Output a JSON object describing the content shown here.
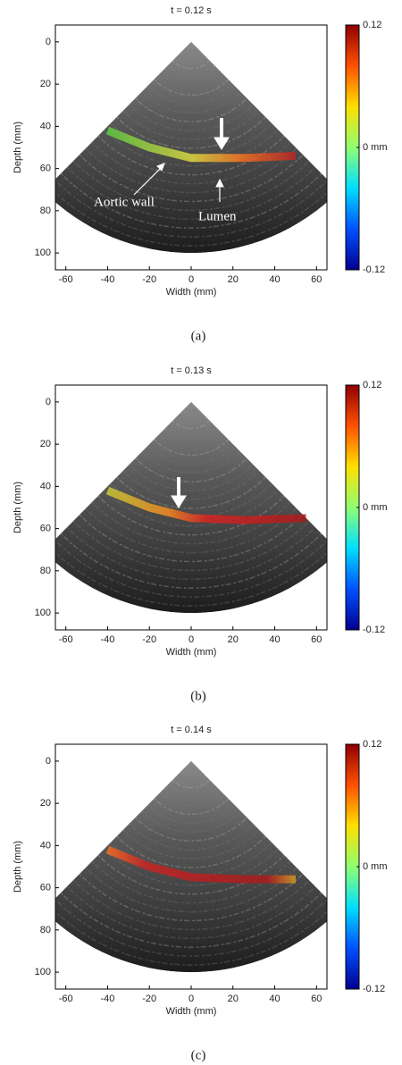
{
  "chart_data": [
    {
      "type": "image",
      "title": "t = 0.12 s",
      "xlabel": "Width (mm)",
      "ylabel": "Depth (mm)",
      "xlim": [
        -65,
        65
      ],
      "ylim": [
        108,
        -8
      ],
      "xticks": [
        -60,
        -40,
        -20,
        0,
        20,
        40,
        60
      ],
      "yticks": [
        0,
        20,
        40,
        60,
        80,
        100
      ],
      "colorbar": {
        "lim": [
          -0.12,
          0.12
        ],
        "ticks": [
          -0.12,
          {
            "value": 0,
            "label": "0 mm"
          },
          0.12
        ],
        "colors": [
          "#00008f",
          "#0050ff",
          "#00dfff",
          "#8fff70",
          "#ffdf00",
          "#ff5000",
          "#8f0000"
        ]
      },
      "annotations": [
        "Aortic wall",
        "Lumen"
      ],
      "caption": "(a)"
    },
    {
      "type": "image",
      "title": "t = 0.13 s",
      "xlabel": "Width (mm)",
      "ylabel": "Depth (mm)",
      "xlim": [
        -65,
        65
      ],
      "ylim": [
        108,
        -8
      ],
      "xticks": [
        -60,
        -40,
        -20,
        0,
        20,
        40,
        60
      ],
      "yticks": [
        0,
        20,
        40,
        60,
        80,
        100
      ],
      "colorbar": {
        "lim": [
          -0.12,
          0.12
        ],
        "ticks": [
          -0.12,
          {
            "value": 0,
            "label": "0 mm"
          },
          0.12
        ],
        "colors": [
          "#00008f",
          "#0050ff",
          "#00dfff",
          "#8fff70",
          "#ffdf00",
          "#ff5000",
          "#8f0000"
        ]
      },
      "caption": "(b)"
    },
    {
      "type": "image",
      "title": "t = 0.14 s",
      "xlabel": "Width (mm)",
      "ylabel": "Depth (mm)",
      "xlim": [
        -65,
        65
      ],
      "ylim": [
        108,
        -8
      ],
      "xticks": [
        -60,
        -40,
        -20,
        0,
        20,
        40,
        60
      ],
      "yticks": [
        0,
        20,
        40,
        60,
        80,
        100
      ],
      "colorbar": {
        "lim": [
          -0.12,
          0.12
        ],
        "ticks": [
          -0.12,
          {
            "value": 0,
            "label": "0 mm"
          },
          0.12
        ],
        "colors": [
          "#00008f",
          "#0050ff",
          "#00dfff",
          "#8fff70",
          "#ffdf00",
          "#ff5000",
          "#8f0000"
        ]
      },
      "caption": "(c)"
    }
  ]
}
